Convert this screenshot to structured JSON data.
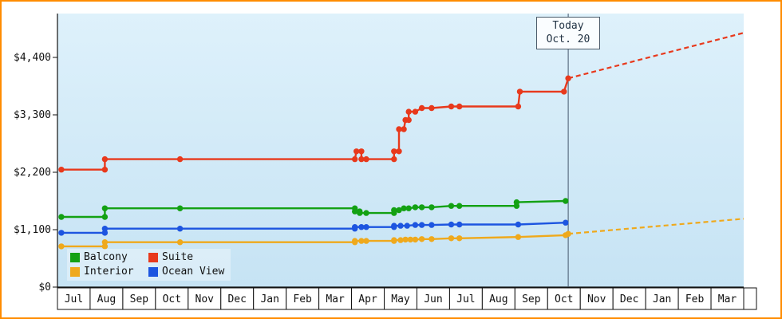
{
  "colors": {
    "frame": "#ff8c00",
    "plot_bg_top": "#def1fb",
    "plot_bg_bottom": "#c6e3f4",
    "axis": "#111111",
    "today_line": "#44566b"
  },
  "chart_data": {
    "type": "line",
    "title": "",
    "xlabel": "",
    "ylabel": "",
    "grid": false,
    "legend_position": "bottom-left-inside",
    "months": [
      "Jul",
      "Aug",
      "Sep",
      "Oct",
      "Nov",
      "Dec",
      "Jan",
      "Feb",
      "Mar",
      "Apr",
      "May",
      "Jun",
      "Jul",
      "Aug",
      "Sep",
      "Oct",
      "Nov",
      "Dec",
      "Jan",
      "Feb",
      "Mar"
    ],
    "y_axis": {
      "ticks": [
        {
          "label": "$0",
          "value": 0
        },
        {
          "label": "$1,100",
          "value": 1100
        },
        {
          "label": "$2,200",
          "value": 2200
        },
        {
          "label": "$3,300",
          "value": 3300
        },
        {
          "label": "$4,400",
          "value": 4400
        }
      ]
    },
    "today": {
      "label": "Today",
      "date": "Oct. 20",
      "month_position": 15.63
    },
    "legend": [
      {
        "label": "Balcony",
        "color": "#13a113"
      },
      {
        "label": "Suite",
        "color": "#e8391c"
      },
      {
        "label": "Interior",
        "color": "#efa91c"
      },
      {
        "label": "Ocean View",
        "color": "#1d55e0"
      }
    ],
    "series": [
      {
        "name": "Balcony",
        "color": "#13a113",
        "points": [
          [
            0.12,
            1345
          ],
          [
            1.45,
            1345
          ],
          [
            1.45,
            1510
          ],
          [
            3.75,
            1510
          ],
          [
            9.1,
            1510
          ],
          [
            9.1,
            1450
          ],
          [
            9.25,
            1450
          ],
          [
            9.25,
            1420
          ],
          [
            9.45,
            1420
          ],
          [
            10.3,
            1420
          ],
          [
            10.3,
            1475
          ],
          [
            10.45,
            1475
          ],
          [
            10.6,
            1510
          ],
          [
            10.75,
            1510
          ],
          [
            10.95,
            1530
          ],
          [
            11.15,
            1530
          ],
          [
            11.45,
            1530
          ],
          [
            12.05,
            1555
          ],
          [
            12.3,
            1555
          ],
          [
            14.05,
            1555
          ],
          [
            14.05,
            1625
          ],
          [
            15.55,
            1650
          ]
        ],
        "projection": null
      },
      {
        "name": "Suite",
        "color": "#e8391c",
        "points": [
          [
            0.12,
            2250
          ],
          [
            1.45,
            2250
          ],
          [
            1.45,
            2450
          ],
          [
            3.75,
            2450
          ],
          [
            9.1,
            2450
          ],
          [
            9.15,
            2600
          ],
          [
            9.3,
            2600
          ],
          [
            9.3,
            2450
          ],
          [
            9.45,
            2450
          ],
          [
            10.3,
            2450
          ],
          [
            10.3,
            2600
          ],
          [
            10.45,
            2600
          ],
          [
            10.45,
            3025
          ],
          [
            10.6,
            3025
          ],
          [
            10.65,
            3200
          ],
          [
            10.75,
            3200
          ],
          [
            10.75,
            3360
          ],
          [
            10.95,
            3360
          ],
          [
            11.15,
            3430
          ],
          [
            11.45,
            3430
          ],
          [
            12.05,
            3460
          ],
          [
            12.3,
            3460
          ],
          [
            14.1,
            3460
          ],
          [
            14.15,
            3745
          ],
          [
            15.5,
            3745
          ],
          [
            15.63,
            4000
          ]
        ],
        "projection": [
          [
            15.63,
            4000
          ],
          [
            21.0,
            4870
          ]
        ]
      },
      {
        "name": "Interior",
        "color": "#efa91c",
        "points": [
          [
            0.12,
            780
          ],
          [
            1.45,
            780
          ],
          [
            1.45,
            860
          ],
          [
            3.75,
            860
          ],
          [
            9.1,
            860
          ],
          [
            9.1,
            885
          ],
          [
            9.3,
            885
          ],
          [
            9.45,
            885
          ],
          [
            10.3,
            885
          ],
          [
            10.3,
            900
          ],
          [
            10.5,
            900
          ],
          [
            10.65,
            910
          ],
          [
            10.8,
            910
          ],
          [
            10.95,
            910
          ],
          [
            11.15,
            920
          ],
          [
            11.45,
            920
          ],
          [
            12.05,
            935
          ],
          [
            12.3,
            935
          ],
          [
            14.1,
            960
          ],
          [
            15.55,
            995
          ],
          [
            15.63,
            1020
          ]
        ],
        "projection": [
          [
            15.63,
            1020
          ],
          [
            21.0,
            1310
          ]
        ]
      },
      {
        "name": "Ocean View",
        "color": "#1d55e0",
        "points": [
          [
            0.12,
            1040
          ],
          [
            1.45,
            1040
          ],
          [
            1.45,
            1120
          ],
          [
            3.75,
            1120
          ],
          [
            9.1,
            1120
          ],
          [
            9.1,
            1150
          ],
          [
            9.3,
            1150
          ],
          [
            9.45,
            1150
          ],
          [
            10.3,
            1150
          ],
          [
            10.3,
            1175
          ],
          [
            10.5,
            1175
          ],
          [
            10.7,
            1175
          ],
          [
            10.95,
            1190
          ],
          [
            11.15,
            1190
          ],
          [
            11.45,
            1190
          ],
          [
            12.05,
            1200
          ],
          [
            12.3,
            1200
          ],
          [
            14.1,
            1200
          ],
          [
            15.55,
            1235
          ]
        ],
        "projection": null
      }
    ]
  }
}
